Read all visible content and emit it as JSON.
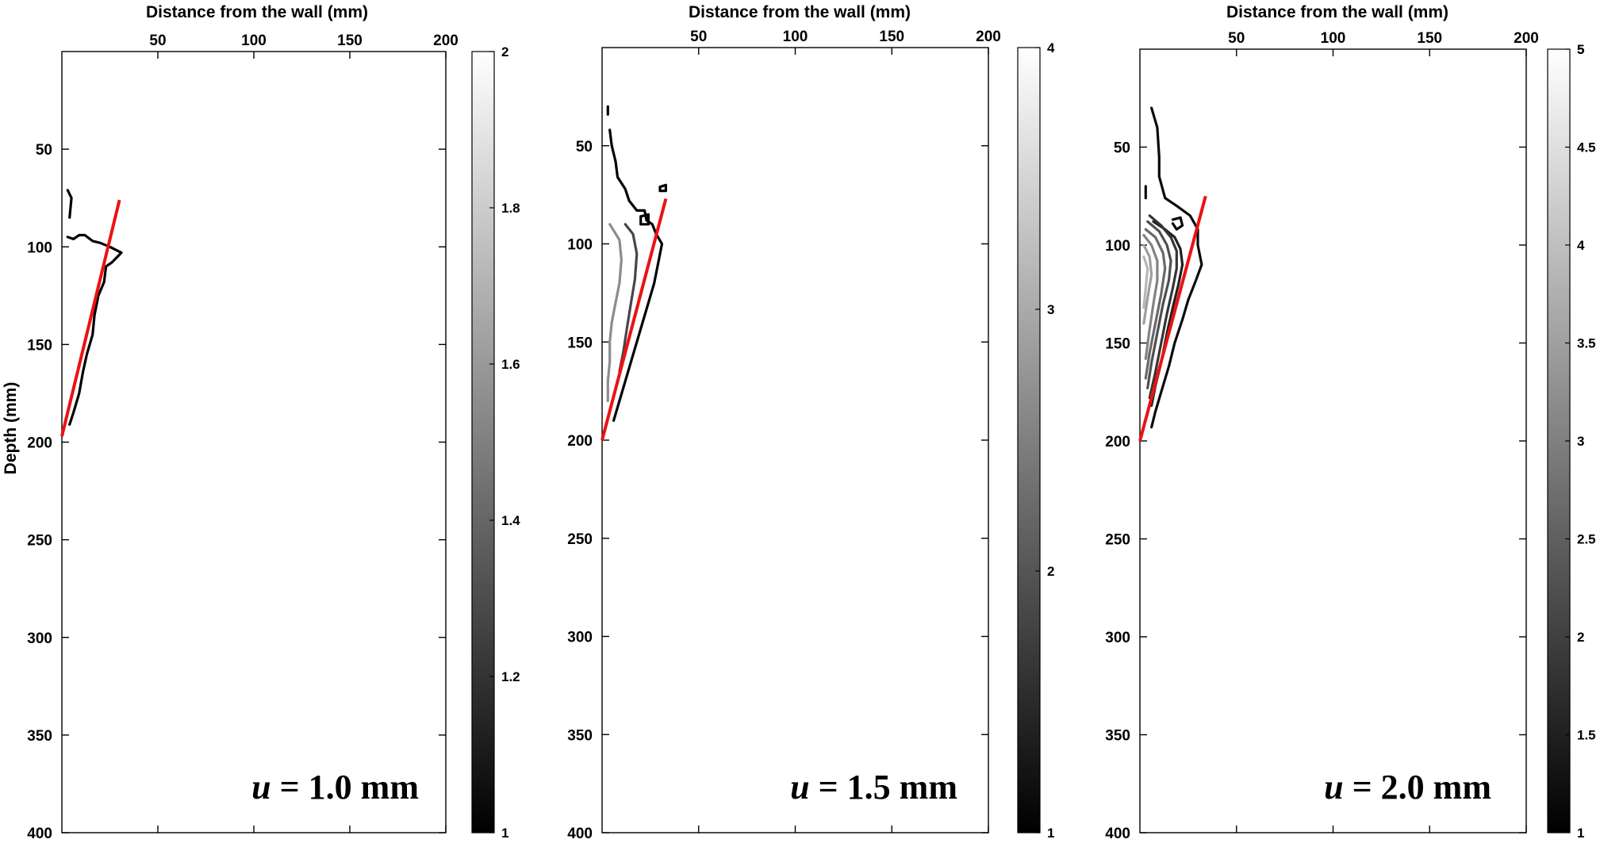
{
  "chart_data": [
    {
      "type": "contour",
      "xlabel": "Distance from the wall (mm)",
      "ylabel": "Depth (mm)",
      "xlim": [
        0,
        200
      ],
      "ylim": [
        0,
        400
      ],
      "y_reversed": true,
      "x_axis_position": "top",
      "xticks": [
        50,
        100,
        150,
        200
      ],
      "yticks": [
        50,
        100,
        150,
        200,
        250,
        300,
        350,
        400
      ],
      "annotation": {
        "var": "u",
        "text": " = 1.0 mm"
      },
      "colorbar": {
        "min": 1,
        "max": 2,
        "ticks": [
          1,
          1.2,
          1.4,
          1.6,
          1.8,
          2
        ],
        "colormap": "gray"
      },
      "red_line": [
        [
          0,
          197
        ],
        [
          30,
          76
        ]
      ],
      "contours": [
        {
          "level": 1,
          "points": [
            [
              3,
              71
            ],
            [
              5,
              75
            ],
            [
              4,
              85
            ]
          ]
        },
        {
          "level": 1,
          "points": [
            [
              3,
              95
            ],
            [
              6,
              96
            ],
            [
              9,
              94
            ],
            [
              12,
              94
            ],
            [
              16,
              97
            ],
            [
              20,
              98
            ],
            [
              25,
              100
            ],
            [
              29,
              102
            ],
            [
              31,
              103
            ],
            [
              29,
              105
            ],
            [
              26,
              108
            ],
            [
              23,
              110
            ],
            [
              22,
              118
            ],
            [
              19,
              125
            ],
            [
              17,
              135
            ],
            [
              16,
              145
            ],
            [
              13,
              155
            ],
            [
              11,
              164
            ],
            [
              9,
              175
            ],
            [
              6,
              185
            ],
            [
              4,
              191
            ]
          ]
        }
      ]
    },
    {
      "type": "contour",
      "xlabel": "Distance from the wall (mm)",
      "ylabel": "",
      "xlim": [
        0,
        200
      ],
      "ylim": [
        0,
        400
      ],
      "y_reversed": true,
      "x_axis_position": "top",
      "xticks": [
        50,
        100,
        150,
        200
      ],
      "yticks": [
        50,
        100,
        150,
        200,
        250,
        300,
        350,
        400
      ],
      "annotation": {
        "var": "u",
        "text": " = 1.5 mm"
      },
      "colorbar": {
        "min": 1,
        "max": 4,
        "ticks": [
          1,
          2,
          3,
          4
        ],
        "colormap": "gray"
      },
      "red_line": [
        [
          0,
          200
        ],
        [
          33,
          77
        ]
      ],
      "contours": [
        {
          "level": 1,
          "points": [
            [
              3,
              30
            ],
            [
              3,
              34
            ]
          ]
        },
        {
          "level": 1,
          "points": [
            [
              4,
              42
            ],
            [
              5,
              50
            ],
            [
              7,
              58
            ],
            [
              8,
              66
            ],
            [
              12,
              72
            ],
            [
              14,
              78
            ],
            [
              18,
              83
            ],
            [
              22,
              83
            ],
            [
              23,
              88
            ],
            [
              26,
              90
            ],
            [
              28,
              95
            ],
            [
              31,
              100
            ],
            [
              29,
              110
            ],
            [
              27,
              120
            ],
            [
              24,
              130
            ],
            [
              21,
              140
            ],
            [
              18,
              150
            ],
            [
              15,
              160
            ],
            [
              12,
              170
            ],
            [
              9,
              180
            ],
            [
              6,
              190
            ]
          ]
        },
        {
          "level": 1,
          "points": [
            [
              20,
              86
            ],
            [
              24,
              85
            ],
            [
              24,
              90
            ],
            [
              20,
              90
            ],
            [
              20,
              86
            ]
          ]
        },
        {
          "level": 1,
          "points": [
            [
              30,
              71
            ],
            [
              33,
              70
            ],
            [
              33,
              73
            ],
            [
              30,
              73
            ],
            [
              30,
              71
            ]
          ]
        },
        {
          "level": 2,
          "points": [
            [
              12,
              90
            ],
            [
              16,
              95
            ],
            [
              18,
              105
            ],
            [
              17,
              118
            ],
            [
              15,
              130
            ],
            [
              13,
              142
            ],
            [
              11,
              155
            ],
            [
              9,
              165
            ]
          ]
        },
        {
          "level": 3,
          "points": [
            [
              4,
              90
            ],
            [
              9,
              98
            ],
            [
              10,
              108
            ],
            [
              9,
              120
            ],
            [
              7,
              130
            ],
            [
              5,
              140
            ],
            [
              4,
              150
            ],
            [
              4,
              160
            ],
            [
              3,
              170
            ],
            [
              3,
              180
            ]
          ]
        }
      ]
    },
    {
      "type": "contour",
      "xlabel": "Distance from the wall (mm)",
      "ylabel": "",
      "xlim": [
        0,
        200
      ],
      "ylim": [
        0,
        400
      ],
      "y_reversed": true,
      "x_axis_position": "top",
      "xticks": [
        50,
        100,
        150,
        200
      ],
      "yticks": [
        50,
        100,
        150,
        200,
        250,
        300,
        350,
        400
      ],
      "annotation": {
        "var": "u",
        "text": " = 2.0 mm"
      },
      "colorbar": {
        "min": 1,
        "max": 5,
        "ticks": [
          1.5,
          2,
          2.5,
          3,
          3.5,
          4,
          4.5,
          5
        ],
        "extra_tick_labels": [
          "1",
          "5"
        ],
        "colormap": "gray"
      },
      "red_line": [
        [
          0,
          200
        ],
        [
          34,
          75
        ]
      ],
      "contours": [
        {
          "level": 1.2,
          "points": [
            [
              6,
              30
            ],
            [
              9,
              40
            ],
            [
              10,
              55
            ],
            [
              10,
              65
            ],
            [
              13,
              76
            ],
            [
              19,
              80
            ],
            [
              26,
              85
            ],
            [
              30,
              92
            ],
            [
              30,
              100
            ],
            [
              32,
              110
            ],
            [
              29,
              118
            ],
            [
              25,
              128
            ],
            [
              22,
              138
            ],
            [
              18,
              150
            ],
            [
              15,
              162
            ],
            [
              11,
              175
            ],
            [
              8,
              185
            ],
            [
              6,
              193
            ]
          ]
        },
        {
          "level": 1.2,
          "points": [
            [
              17,
              87
            ],
            [
              21,
              86
            ],
            [
              22,
              90
            ],
            [
              19,
              92
            ],
            [
              17,
              89
            ]
          ]
        },
        {
          "level": 1.2,
          "points": [
            [
              3,
              70
            ],
            [
              3,
              76
            ]
          ]
        },
        {
          "level": 1.6,
          "points": [
            [
              7,
              88
            ],
            [
              13,
              92
            ],
            [
              18,
              96
            ],
            [
              21,
              102
            ],
            [
              22,
              110
            ],
            [
              20,
              120
            ],
            [
              17,
              132
            ],
            [
              14,
              145
            ],
            [
              11,
              160
            ],
            [
              8,
              172
            ],
            [
              6,
              182
            ]
          ]
        },
        {
          "level": 2.0,
          "points": [
            [
              5,
              85
            ],
            [
              11,
              90
            ],
            [
              16,
              96
            ],
            [
              19,
              103
            ],
            [
              19,
              112
            ],
            [
              17,
              122
            ],
            [
              14,
              135
            ],
            [
              11,
              150
            ],
            [
              8,
              165
            ],
            [
              5,
              178
            ]
          ]
        },
        {
          "level": 2.5,
          "points": [
            [
              4,
              88
            ],
            [
              10,
              93
            ],
            [
              14,
              100
            ],
            [
              16,
              108
            ],
            [
              15,
              118
            ],
            [
              12,
              130
            ],
            [
              9,
              145
            ],
            [
              6,
              160
            ],
            [
              4,
              173
            ]
          ]
        },
        {
          "level": 3.0,
          "points": [
            [
              3,
              92
            ],
            [
              8,
              96
            ],
            [
              12,
              104
            ],
            [
              13,
              112
            ],
            [
              11,
              125
            ],
            [
              8,
              140
            ],
            [
              5,
              155
            ],
            [
              3,
              168
            ]
          ]
        },
        {
          "level": 3.5,
          "points": [
            [
              2,
              95
            ],
            [
              6,
              100
            ],
            [
              9,
              108
            ],
            [
              9,
              118
            ],
            [
              7,
              130
            ],
            [
              5,
              143
            ],
            [
              3,
              158
            ]
          ]
        },
        {
          "level": 4.0,
          "points": [
            [
              2,
              100
            ],
            [
              5,
              106
            ],
            [
              6,
              115
            ],
            [
              4,
              127
            ],
            [
              2,
              140
            ]
          ]
        },
        {
          "level": 4.5,
          "points": [
            [
              2,
              106
            ],
            [
              4,
              112
            ],
            [
              3,
              122
            ],
            [
              2,
              132
            ]
          ]
        }
      ]
    }
  ]
}
